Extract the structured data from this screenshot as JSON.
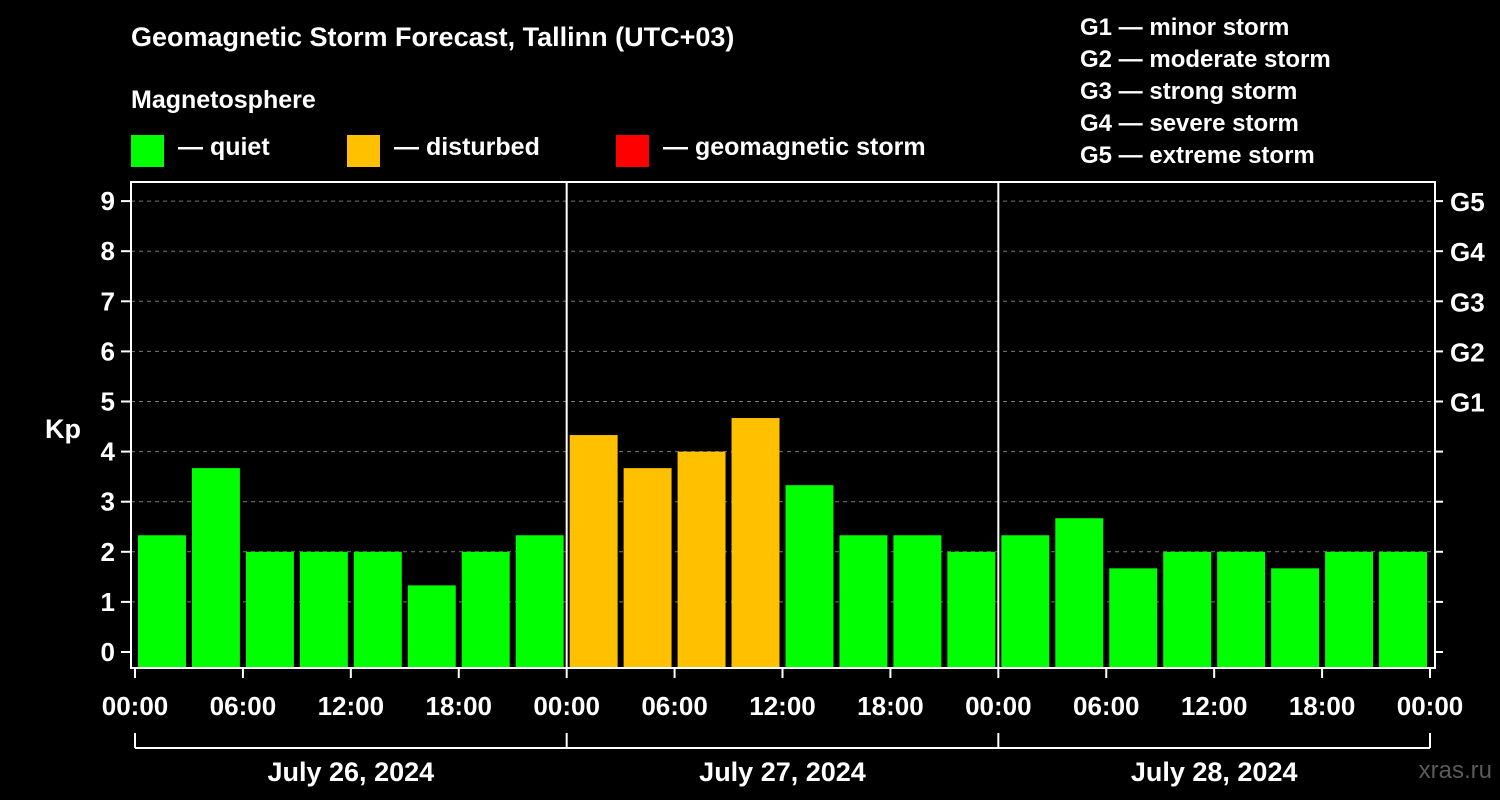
{
  "title": "Geomagnetic Storm Forecast, Tallinn (UTC+03)",
  "magnetosphere_label": "Magnetosphere",
  "legend": [
    {
      "label": "— quiet",
      "color": "#00ff00"
    },
    {
      "label": "— disturbed",
      "color": "#ffc000"
    },
    {
      "label": "— geomagnetic storm",
      "color": "#ff0000"
    }
  ],
  "g_legend": [
    "G1 — minor storm",
    "G2 — moderate storm",
    "G3 — strong storm",
    "G4 — severe storm",
    "G5 — extreme storm"
  ],
  "watermark": "xras.ru",
  "chart_data": {
    "type": "bar",
    "ylabel": "Kp",
    "ylim": [
      0,
      9
    ],
    "y_ticks": [
      "0",
      "1",
      "2",
      "3",
      "4",
      "5",
      "6",
      "7",
      "8",
      "9"
    ],
    "right_ticks": [
      {
        "kp": 5,
        "label": "G1"
      },
      {
        "kp": 6,
        "label": "G2"
      },
      {
        "kp": 7,
        "label": "G3"
      },
      {
        "kp": 8,
        "label": "G4"
      },
      {
        "kp": 9,
        "label": "G5"
      }
    ],
    "x_tick_labels": [
      "00:00",
      "06:00",
      "12:00",
      "18:00",
      "00:00",
      "06:00",
      "12:00",
      "18:00",
      "00:00",
      "06:00",
      "12:00",
      "18:00",
      "00:00"
    ],
    "days": [
      "July 26, 2024",
      "July 27, 2024",
      "July 28, 2024"
    ],
    "grid": true,
    "values": [
      2.33,
      3.67,
      2.0,
      2.0,
      2.0,
      1.33,
      2.0,
      2.33,
      4.33,
      3.67,
      4.0,
      4.67,
      3.33,
      2.33,
      2.33,
      2.0,
      2.33,
      2.67,
      1.67,
      2.0,
      2.0,
      1.67,
      2.0,
      2.0
    ],
    "colors": {
      "quiet": "#00ff00",
      "disturbed": "#ffc000",
      "storm": "#ff0000"
    },
    "status": [
      "quiet",
      "quiet",
      "quiet",
      "quiet",
      "quiet",
      "quiet",
      "quiet",
      "quiet",
      "disturbed",
      "disturbed",
      "disturbed",
      "disturbed",
      "quiet",
      "quiet",
      "quiet",
      "quiet",
      "quiet",
      "quiet",
      "quiet",
      "quiet",
      "quiet",
      "quiet",
      "quiet",
      "quiet"
    ]
  }
}
